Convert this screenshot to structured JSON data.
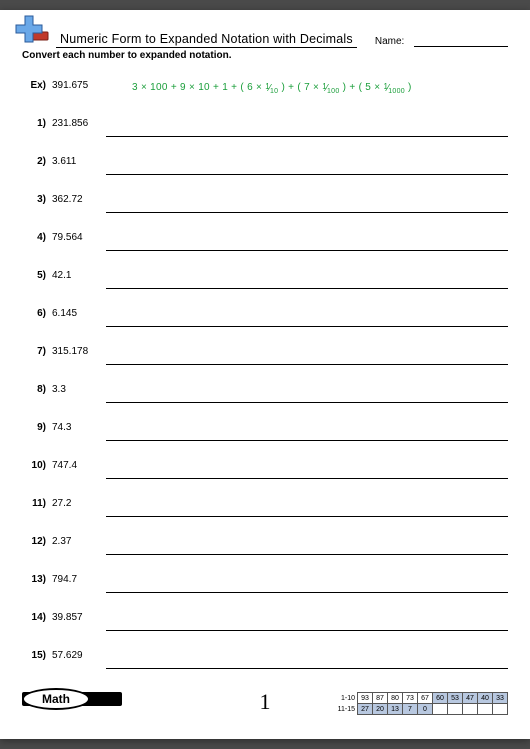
{
  "header": {
    "title": "Numeric Form to Expanded Notation with Decimals",
    "name_label": "Name:"
  },
  "instruction": "Convert each number to expanded notation.",
  "example": {
    "label": "Ex)",
    "value": "391.675",
    "answer_int": "3 × 100 + 9 × 10 + 1 + ( 6 × ",
    "answer_f1n": "1",
    "answer_f1d": "10",
    "answer_mid1": " ) + ( 7 × ",
    "answer_f2n": "1",
    "answer_f2d": "100",
    "answer_mid2": " ) + ( 5 × ",
    "answer_f3n": "1",
    "answer_f3d": "1000",
    "answer_end": " )"
  },
  "problems": [
    {
      "n": "1)",
      "v": "231.856"
    },
    {
      "n": "2)",
      "v": "3.611"
    },
    {
      "n": "3)",
      "v": "362.72"
    },
    {
      "n": "4)",
      "v": "79.564"
    },
    {
      "n": "5)",
      "v": "42.1"
    },
    {
      "n": "6)",
      "v": "6.145"
    },
    {
      "n": "7)",
      "v": "315.178"
    },
    {
      "n": "8)",
      "v": "3.3"
    },
    {
      "n": "9)",
      "v": "74.3"
    },
    {
      "n": "10)",
      "v": "747.4"
    },
    {
      "n": "11)",
      "v": "27.2"
    },
    {
      "n": "12)",
      "v": "2.37"
    },
    {
      "n": "13)",
      "v": "794.7"
    },
    {
      "n": "14)",
      "v": "39.857"
    },
    {
      "n": "15)",
      "v": "57.629"
    }
  ],
  "footer": {
    "math_label": "Math",
    "page_number": "1",
    "score_labels": [
      "1-10",
      "11-15"
    ],
    "score_row1": [
      "93",
      "87",
      "80",
      "73",
      "67",
      "60",
      "53",
      "47",
      "40",
      "33"
    ],
    "score_row2": [
      "27",
      "20",
      "13",
      "7",
      "0"
    ],
    "row1_shade_from": 5,
    "colors": {
      "shade_bg": "#b8c8e0",
      "grid_border": "#555555"
    }
  },
  "logo_colors": {
    "plus_fill": "#6aa8e8",
    "plus_stroke": "#2a5a9a",
    "minus_fill": "#c0392b",
    "minus_stroke": "#7a1f16"
  }
}
